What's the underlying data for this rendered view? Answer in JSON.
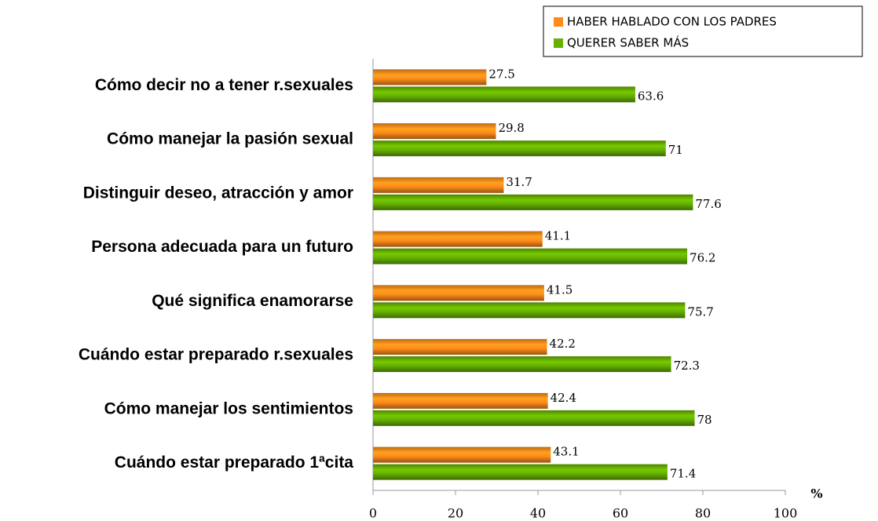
{
  "chart_data": {
    "type": "hbar",
    "categories": [
      "Cómo decir no a tener r.sexuales",
      "Cómo manejar la pasión sexual",
      "Distinguir deseo, atracción y amor",
      "Persona adecuada para un futuro",
      "Qué significa enamorarse",
      "Cuándo estar preparado r.sexuales",
      "Cómo manejar los sentimientos",
      "Cuándo estar preparado 1ªcita"
    ],
    "series": [
      {
        "name": "HABER HABLADO CON LOS PADRES",
        "color": "#ff8c1a",
        "values": [
          27.5,
          29.8,
          31.7,
          41.1,
          41.5,
          42.2,
          42.4,
          43.1
        ]
      },
      {
        "name": "QUERER SABER MÁS",
        "color": "#66b000",
        "values": [
          63.6,
          71,
          77.6,
          76.2,
          75.7,
          72.3,
          78,
          71.4
        ]
      }
    ],
    "xlabel": "%",
    "xlim": [
      0,
      100
    ],
    "xticks": [
      0,
      20,
      40,
      60,
      80,
      100
    ],
    "legend": "top-right",
    "grid": false
  }
}
